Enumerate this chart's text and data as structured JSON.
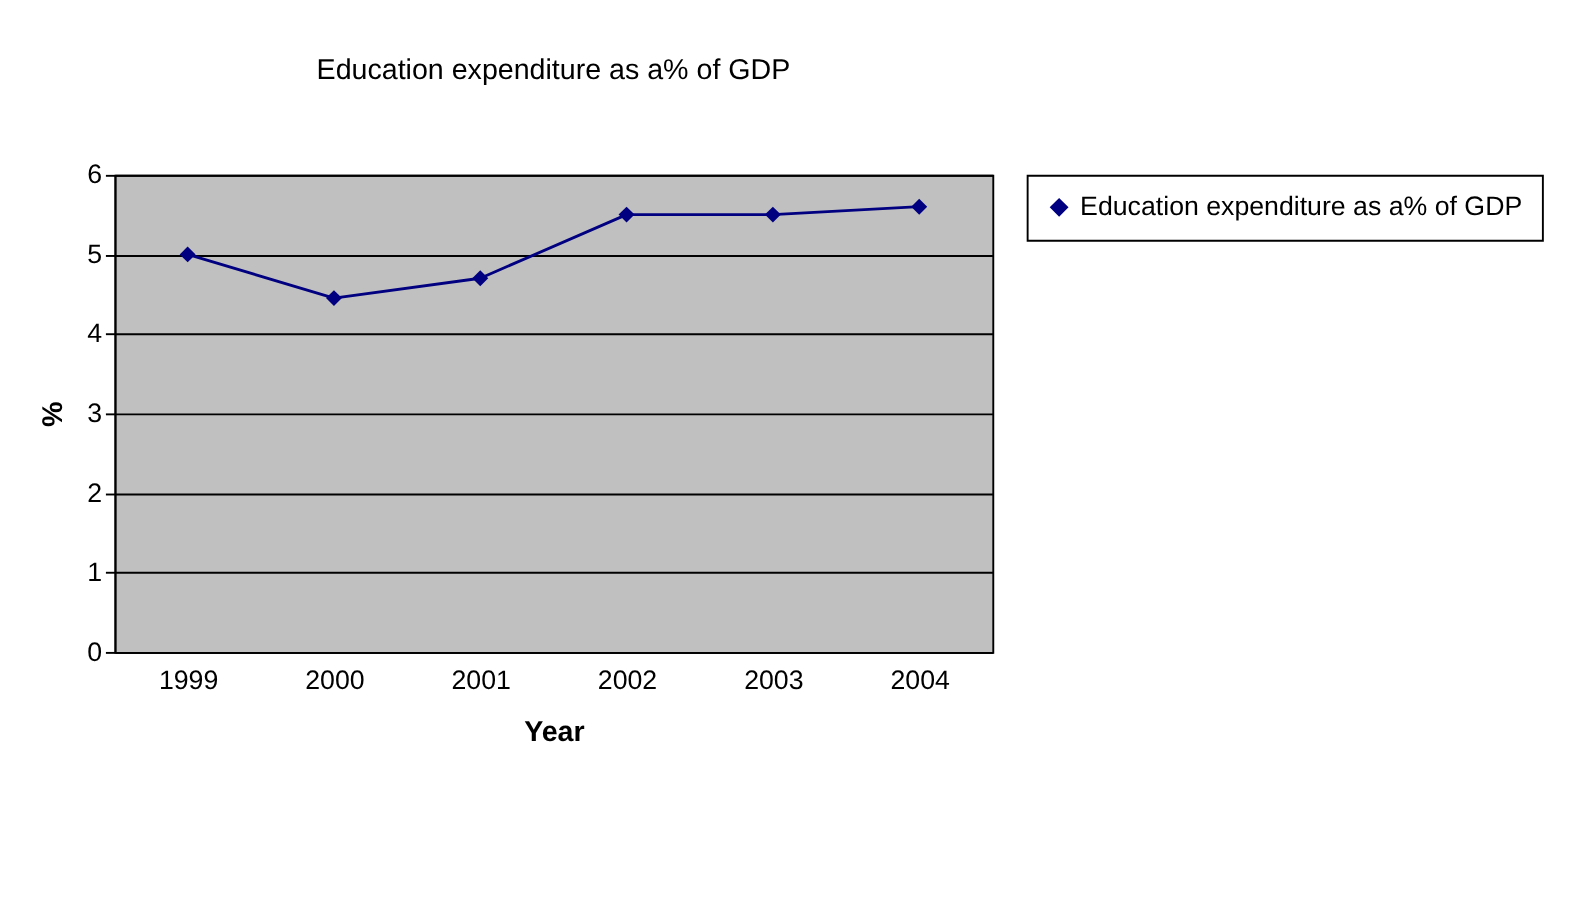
{
  "chart_data": {
    "type": "line",
    "title": "Education expenditure as a% of GDP",
    "xlabel": "Year",
    "ylabel": "%",
    "categories": [
      "1999",
      "2000",
      "2001",
      "2002",
      "2003",
      "2004"
    ],
    "series": [
      {
        "name": "Education expenditure as a% of GDP",
        "color": "#000080",
        "values": [
          5.0,
          4.45,
          4.7,
          5.5,
          5.5,
          5.6
        ]
      }
    ],
    "ylim": [
      0,
      6
    ],
    "yticks": [
      0,
      1,
      2,
      3,
      4,
      5,
      6
    ],
    "grid": "y",
    "legend": "right",
    "marker": "diamond",
    "line_style": "solid"
  }
}
